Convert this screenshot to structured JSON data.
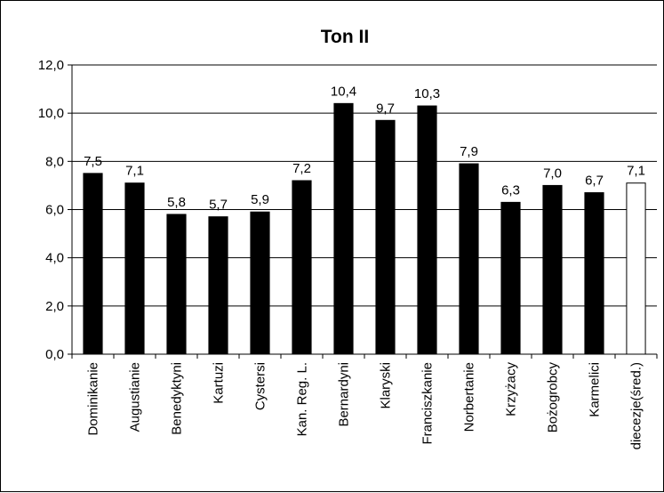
{
  "chart_data": {
    "type": "bar",
    "title": "Ton II",
    "xlabel": "",
    "ylabel": "",
    "ylim": [
      0,
      12
    ],
    "yticks": [
      "0,0",
      "2,0",
      "4,0",
      "6,0",
      "8,0",
      "10,0",
      "12,0"
    ],
    "grid": true,
    "legend": "none",
    "categories": [
      "Dominikanie",
      "Augustianie",
      "Benedyktyni",
      "Kartuzi",
      "Cystersi",
      "Kan. Reg. L.",
      "Bernardyni",
      "Klaryski",
      "Franciszkanie",
      "Norbertanie",
      "Krzyżacy",
      "Bożogrobcy",
      "Karmelici",
      "diecezje(śred.)"
    ],
    "values": [
      7.5,
      7.1,
      5.8,
      5.7,
      5.9,
      7.2,
      10.4,
      9.7,
      10.3,
      7.9,
      6.3,
      7.0,
      6.7,
      7.1
    ],
    "value_labels": [
      "7,5",
      "7,1",
      "5,8",
      "5,7",
      "5,9",
      "7,2",
      "10,4",
      "9,7",
      "10,3",
      "7,9",
      "6,3",
      "7,0",
      "6,7",
      "7,1"
    ],
    "bar_colors": [
      "#000000",
      "#000000",
      "#000000",
      "#000000",
      "#000000",
      "#000000",
      "#000000",
      "#000000",
      "#000000",
      "#000000",
      "#000000",
      "#000000",
      "#000000",
      "#ffffff"
    ],
    "bar_stroke": "#000000"
  }
}
